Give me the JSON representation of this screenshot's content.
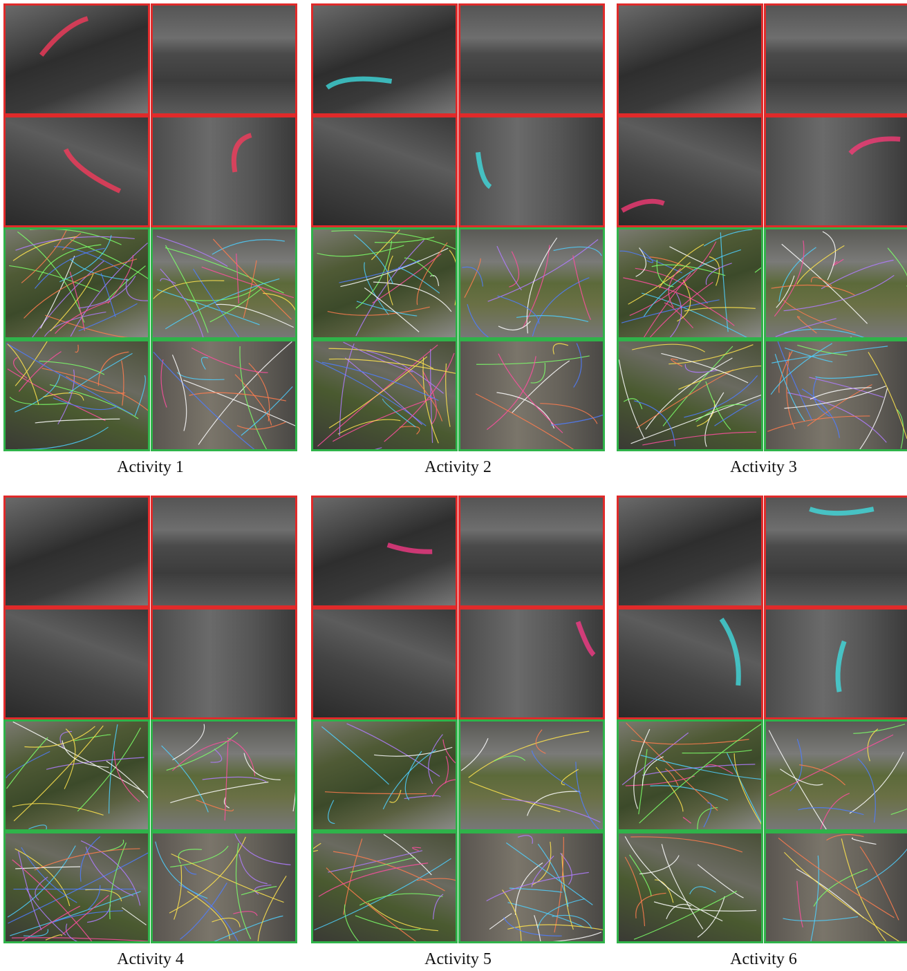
{
  "panels": [
    {
      "caption": "Activity 1"
    },
    {
      "caption": "Activity 2"
    },
    {
      "caption": "Activity 3"
    },
    {
      "caption": "Activity 4"
    },
    {
      "caption": "Activity 5"
    },
    {
      "caption": "Activity 6"
    }
  ]
}
